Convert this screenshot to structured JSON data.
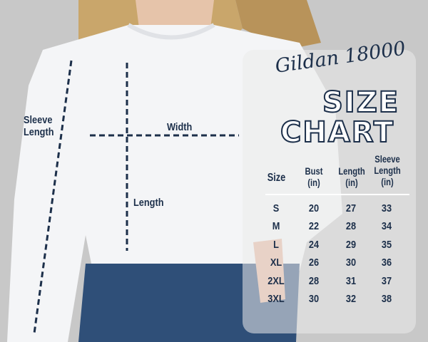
{
  "image": {
    "brand": "Gildan 18000",
    "title_line1": "SIZE",
    "title_line2": "CHART",
    "diagram_labels": {
      "sleeve_length": "Sleeve Length",
      "width": "Width",
      "length": "Length"
    },
    "table": {
      "headers": [
        "Size",
        "Bust (in)",
        "Length (in)",
        "Sleeve Length (in)"
      ],
      "rows": [
        [
          "S",
          "20",
          "27",
          "33"
        ],
        [
          "M",
          "22",
          "28",
          "34"
        ],
        [
          "L",
          "24",
          "29",
          "35"
        ],
        [
          "XL",
          "26",
          "30",
          "36"
        ],
        [
          "2XL",
          "28",
          "31",
          "37"
        ],
        [
          "3XL",
          "30",
          "32",
          "38"
        ]
      ]
    },
    "colors": {
      "text": "#1c2f4a",
      "background": "#c8c8c8",
      "sweatshirt": "#f4f5f7",
      "denim": "#2f4f78"
    }
  }
}
